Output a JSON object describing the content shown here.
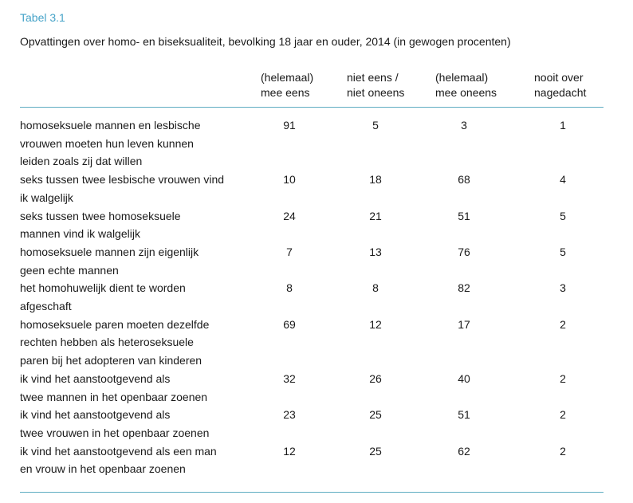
{
  "page": {
    "title": "Tabel 3.1",
    "subtitle": "Opvattingen over homo- en biseksualiteit, bevolking 18 jaar en ouder, 2014 (in gewogen procenten)"
  },
  "colors": {
    "accent_teal": "#46a3c8",
    "rule_teal": "#5fadc2",
    "text": "#1a1a1a"
  },
  "table": {
    "column_headers": [
      "(helemaal)\nmee eens",
      "niet eens /\nniet oneens",
      "(helemaal)\nmee oneens",
      "nooit over\nnagedacht"
    ],
    "rows": [
      {
        "statement": "homoseksuele mannen en lesbische\nvrouwen moeten hun leven kunnen\nleiden zoals zij dat willen",
        "values": [
          91,
          5,
          3,
          1
        ]
      },
      {
        "statement": "seks tussen twee lesbische vrouwen vind\nik walgelijk",
        "values": [
          10,
          18,
          68,
          4
        ]
      },
      {
        "statement": "seks tussen twee homoseksuele\nmannen vind ik walgelijk",
        "values": [
          24,
          21,
          51,
          5
        ]
      },
      {
        "statement": "homoseksuele mannen zijn eigenlijk\ngeen echte mannen",
        "values": [
          7,
          13,
          76,
          5
        ]
      },
      {
        "statement": "het homohuwelijk dient te worden\nafgeschaft",
        "values": [
          8,
          8,
          82,
          3
        ]
      },
      {
        "statement": "homoseksuele paren moeten dezelfde\nrechten hebben als heteroseksuele\nparen bij het adopteren van kinderen",
        "values": [
          69,
          12,
          17,
          2
        ]
      },
      {
        "statement": "ik vind het aanstootgevend als\ntwee mannen in het openbaar zoenen",
        "values": [
          32,
          26,
          40,
          2
        ]
      },
      {
        "statement": "ik vind het aanstootgevend als\ntwee vrouwen in het openbaar zoenen",
        "values": [
          23,
          25,
          51,
          2
        ]
      },
      {
        "statement": "ik vind het aanstootgevend als een man\nen vrouw in het openbaar zoenen",
        "values": [
          12,
          25,
          62,
          2
        ]
      }
    ]
  }
}
